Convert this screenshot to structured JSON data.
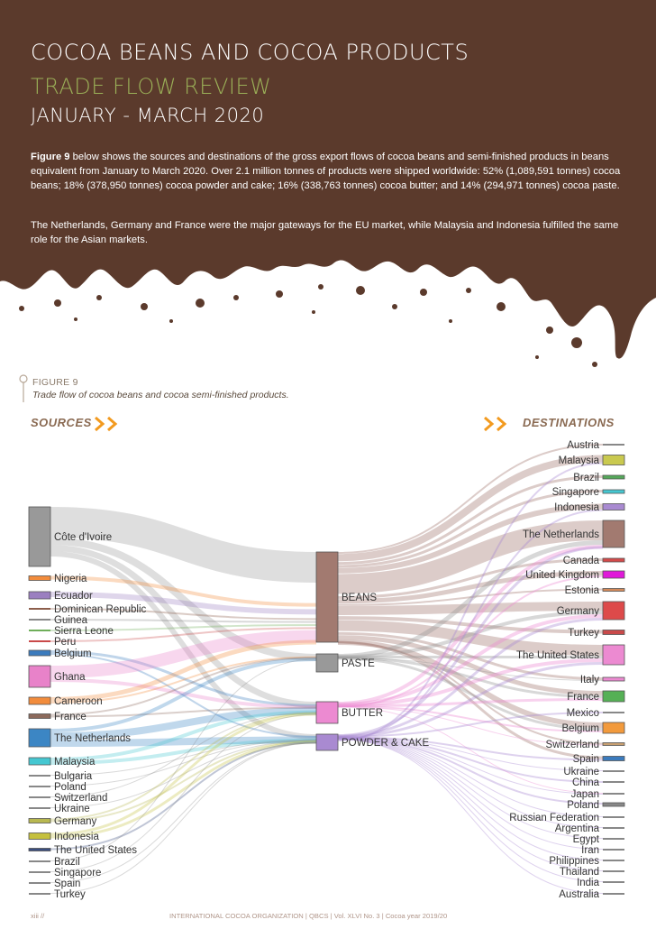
{
  "header": {
    "title_line1": "COCOA BEANS AND COCOA PRODUCTS",
    "title_line2": "TRADE FLOW REVIEW",
    "title_line3": "JANUARY - MARCH 2020",
    "colors": {
      "background": "#5b3a2c",
      "title_accent": "#9bb058"
    }
  },
  "intro": {
    "para1_lead": "Figure 9",
    "para1_text": " below shows the sources and destinations of the gross export flows of cocoa beans and semi-finished products in beans equivalent from January to March 2020. Over 2.1 million tonnes of products were shipped worldwide: 52% (1,089,591 tonnes) cocoa beans; 18% (378,950 tonnes) cocoa powder and cake; 16% (338,763 tonnes) cocoa butter; and 14% (294,971 tonnes) cocoa paste.",
    "para2": "The Netherlands, Germany and France were the major gateways for the EU market, while Malaysia and Indonesia fulfilled the same role for the Asian markets."
  },
  "figure": {
    "label": "FIGURE 9",
    "caption": "Trade flow of cocoa beans and cocoa semi-finished products.",
    "sources_header": "SOURCES",
    "destinations_header": "DESTINATIONS"
  },
  "sankey": {
    "sources": [
      {
        "name": "Côte d'Ivoire",
        "color": "#999999"
      },
      {
        "name": "Nigeria",
        "color": "#f28c3c"
      },
      {
        "name": "Ecuador",
        "color": "#9b7fc0"
      },
      {
        "name": "Dominican Republic",
        "color": "#8c5e4c"
      },
      {
        "name": "Guinea",
        "color": "#888888"
      },
      {
        "name": "Sierra Leone",
        "color": "#6fae5a"
      },
      {
        "name": "Peru",
        "color": "#c94a4a"
      },
      {
        "name": "Belgium",
        "color": "#3b7bbd"
      },
      {
        "name": "Ghana",
        "color": "#e882c9"
      },
      {
        "name": "Cameroon",
        "color": "#f28c3c"
      },
      {
        "name": "France",
        "color": "#8c6a5c"
      },
      {
        "name": "The Netherlands",
        "color": "#3c86c4"
      },
      {
        "name": "Malaysia",
        "color": "#45c7d1"
      },
      {
        "name": "Bulgaria",
        "color": "#888888"
      },
      {
        "name": "Poland",
        "color": "#888888"
      },
      {
        "name": "Switzerland",
        "color": "#888888"
      },
      {
        "name": "Ukraine",
        "color": "#888888"
      },
      {
        "name": "Germany",
        "color": "#b8b850"
      },
      {
        "name": "Indonesia",
        "color": "#c5c03d"
      },
      {
        "name": "The United States",
        "color": "#3b4e80"
      },
      {
        "name": "Brazil",
        "color": "#888888"
      },
      {
        "name": "Singapore",
        "color": "#888888"
      },
      {
        "name": "Spain",
        "color": "#888888"
      },
      {
        "name": "Turkey",
        "color": "#888888"
      }
    ],
    "products": [
      {
        "name": "BEANS",
        "color": "#a27a70"
      },
      {
        "name": "PASTE",
        "color": "#999999"
      },
      {
        "name": "BUTTER",
        "color": "#ec8ad1"
      },
      {
        "name": "POWDER & CAKE",
        "color": "#a98ad1"
      }
    ],
    "destinations": [
      {
        "name": "Austria",
        "color": "#888888"
      },
      {
        "name": "Malaysia",
        "color": "#c9c94f"
      },
      {
        "name": "Brazil",
        "color": "#55a85a"
      },
      {
        "name": "Singapore",
        "color": "#45c7d1"
      },
      {
        "name": "Indonesia",
        "color": "#a98ad1"
      },
      {
        "name": "The Netherlands",
        "color": "#a27a70"
      },
      {
        "name": "Canada",
        "color": "#d44a4a"
      },
      {
        "name": "United Kingdom",
        "color": "#e019d9"
      },
      {
        "name": "Estonia",
        "color": "#d48a5a"
      },
      {
        "name": "Germany",
        "color": "#dd4a4a"
      },
      {
        "name": "Turkey",
        "color": "#c94a4a"
      },
      {
        "name": "The United States",
        "color": "#ec8ad1"
      },
      {
        "name": "Italy",
        "color": "#ec8ad1"
      },
      {
        "name": "France",
        "color": "#55b055"
      },
      {
        "name": "Mexico",
        "color": "#888888"
      },
      {
        "name": "Belgium",
        "color": "#f29a3c"
      },
      {
        "name": "Switzerland",
        "color": "#c9a070"
      },
      {
        "name": "Spain",
        "color": "#3b7bbd"
      },
      {
        "name": "Ukraine",
        "color": "#888888"
      },
      {
        "name": "China",
        "color": "#888888"
      },
      {
        "name": "Japan",
        "color": "#888888"
      },
      {
        "name": "Poland",
        "color": "#888888"
      },
      {
        "name": "Russian Federation",
        "color": "#888888"
      },
      {
        "name": "Argentina",
        "color": "#888888"
      },
      {
        "name": "Egypt",
        "color": "#888888"
      },
      {
        "name": "Iran",
        "color": "#888888"
      },
      {
        "name": "Philippines",
        "color": "#888888"
      },
      {
        "name": "Thailand",
        "color": "#888888"
      },
      {
        "name": "India",
        "color": "#888888"
      },
      {
        "name": "Australia",
        "color": "#888888"
      }
    ]
  },
  "footer": {
    "page_number": "xiii //",
    "text": "INTERNATIONAL COCOA ORGANIZATION | QBCS | Vol. XLVI No. 3 | Cocoa year 2019/20"
  }
}
